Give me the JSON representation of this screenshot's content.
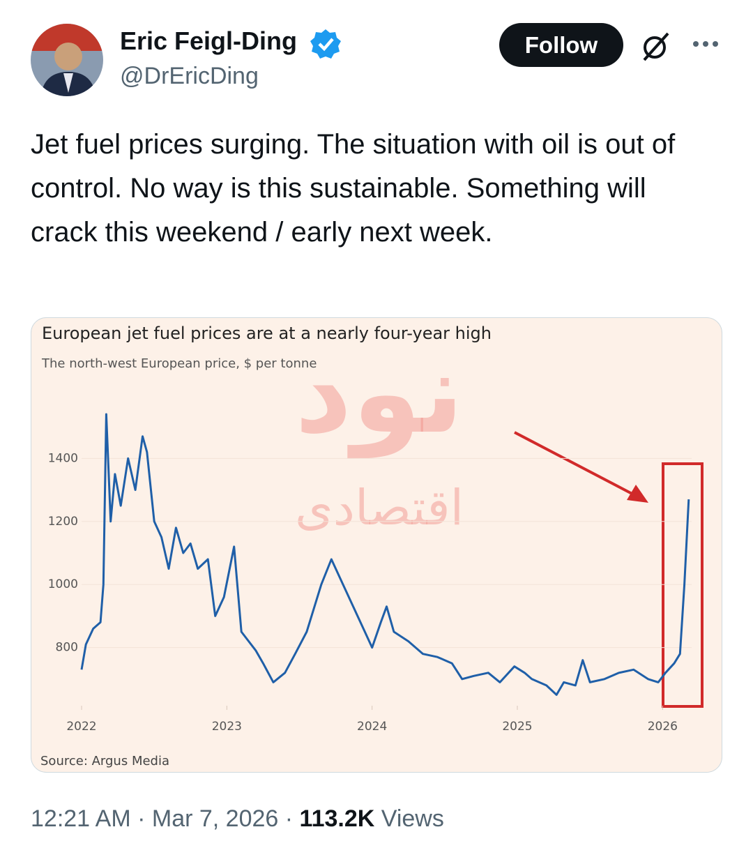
{
  "header": {
    "name": "Eric Feigl-Ding",
    "handle": "@DrEricDing",
    "follow": "Follow"
  },
  "text": "Jet fuel prices surging. The situation with oil is out of control. No way is this sustainable. Something will crack this weekend / early next week.",
  "chart_data": {
    "type": "line",
    "title": "European jet fuel prices are at a nearly four-year high",
    "subtitle": "The north-west European price, $ per tonne",
    "source": "Source: Argus Media",
    "watermark": "نود",
    "watermark_sub": "اقتصادی",
    "color": "#1f5fa8",
    "x": [
      2022.0,
      2022.03,
      2022.08,
      2022.13,
      2022.15,
      2022.17,
      2022.2,
      2022.23,
      2022.27,
      2022.32,
      2022.37,
      2022.42,
      2022.45,
      2022.5,
      2022.55,
      2022.6,
      2022.65,
      2022.7,
      2022.75,
      2022.8,
      2022.87,
      2022.92,
      2022.98,
      2023.05,
      2023.1,
      2023.2,
      2023.25,
      2023.32,
      2023.4,
      2023.47,
      2023.55,
      2023.65,
      2023.72,
      2023.8,
      2023.88,
      2023.95,
      2024.0,
      2024.06,
      2024.1,
      2024.15,
      2024.25,
      2024.35,
      2024.45,
      2024.55,
      2024.62,
      2024.7,
      2024.8,
      2024.88,
      2024.98,
      2025.05,
      2025.1,
      2025.2,
      2025.27,
      2025.32,
      2025.4,
      2025.45,
      2025.5,
      2025.6,
      2025.7,
      2025.8,
      2025.9,
      2025.97,
      2026.02,
      2026.08,
      2026.12,
      2026.15,
      2026.18
    ],
    "values": [
      730,
      810,
      860,
      880,
      1000,
      1540,
      1200,
      1350,
      1250,
      1400,
      1300,
      1470,
      1420,
      1200,
      1150,
      1050,
      1180,
      1100,
      1130,
      1050,
      1080,
      900,
      960,
      1120,
      850,
      790,
      750,
      690,
      720,
      780,
      850,
      1000,
      1080,
      1000,
      920,
      850,
      800,
      880,
      930,
      850,
      820,
      780,
      770,
      750,
      700,
      710,
      720,
      690,
      740,
      720,
      700,
      680,
      650,
      690,
      680,
      760,
      690,
      700,
      720,
      730,
      700,
      690,
      720,
      750,
      780,
      1000,
      1270
    ],
    "xlim": [
      2022,
      2026.2
    ],
    "xticks": [
      2022,
      2023,
      2024,
      2025,
      2026
    ],
    "ylim": [
      620,
      1560
    ],
    "yticks": [
      800,
      1000,
      1200,
      1400
    ]
  },
  "footer": {
    "time": "12:21 AM",
    "date": "Mar 7, 2026",
    "views": "113.2K",
    "views_label": "Views"
  }
}
